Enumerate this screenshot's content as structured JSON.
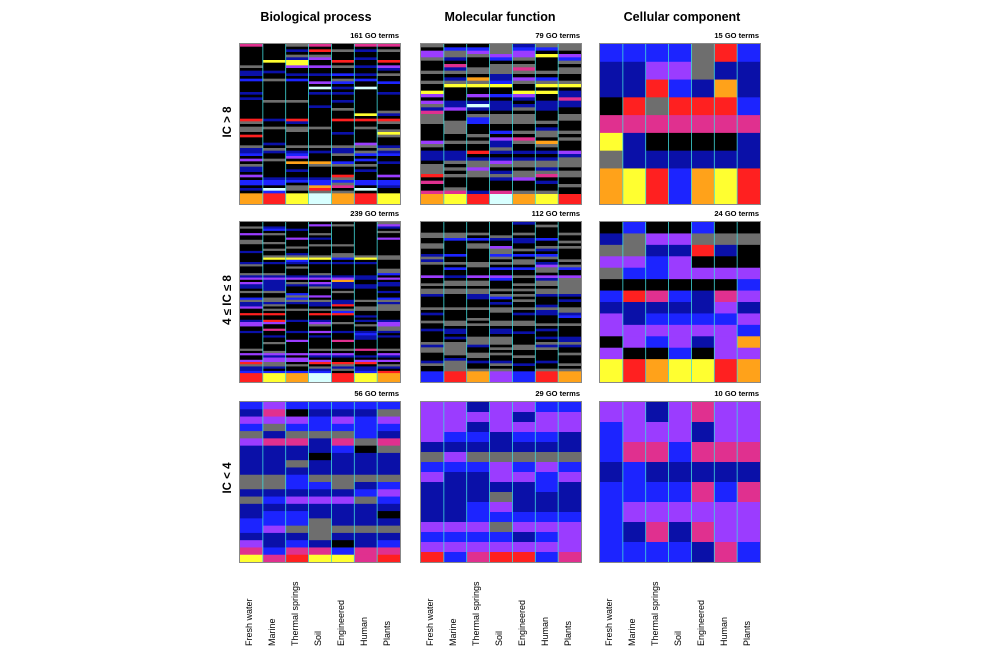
{
  "chart_data": {
    "type": "heatmap",
    "column_titles": [
      "Biological process",
      "Molecular function",
      "Cellular component"
    ],
    "row_labels": [
      "IC > 8",
      "4 ≤ IC ≤ 8",
      "IC < 4"
    ],
    "categories": [
      "Fresh water",
      "Marine",
      "Thermal springs",
      "Soil",
      "Engineered",
      "Human",
      "Plants"
    ],
    "panels": [
      [
        {
          "terms_label": "161 GO terms",
          "n_terms": 161
        },
        {
          "terms_label": "79 GO terms",
          "n_terms": 79
        },
        {
          "terms_label": "15 GO terms",
          "n_terms": 15
        }
      ],
      [
        {
          "terms_label": "239 GO terms",
          "n_terms": 239
        },
        {
          "terms_label": "112 GO terms",
          "n_terms": 112
        },
        {
          "terms_label": "24 GO terms",
          "n_terms": 24
        }
      ],
      [
        {
          "terms_label": "56 GO terms",
          "n_terms": 56
        },
        {
          "terms_label": "29 GO terms",
          "n_terms": 29
        },
        {
          "terms_label": "10 GO terms",
          "n_terms": 10
        }
      ]
    ],
    "color_scale": [
      "#000000",
      "#6e6e6e",
      "#0a10a8",
      "#1c24ff",
      "#9b3cff",
      "#e0308f",
      "#ff2020",
      "#ffa21a",
      "#ffff30",
      "#d8ffff"
    ],
    "separator_color": "#3fd9d9",
    "legend": "none",
    "grid": false
  }
}
